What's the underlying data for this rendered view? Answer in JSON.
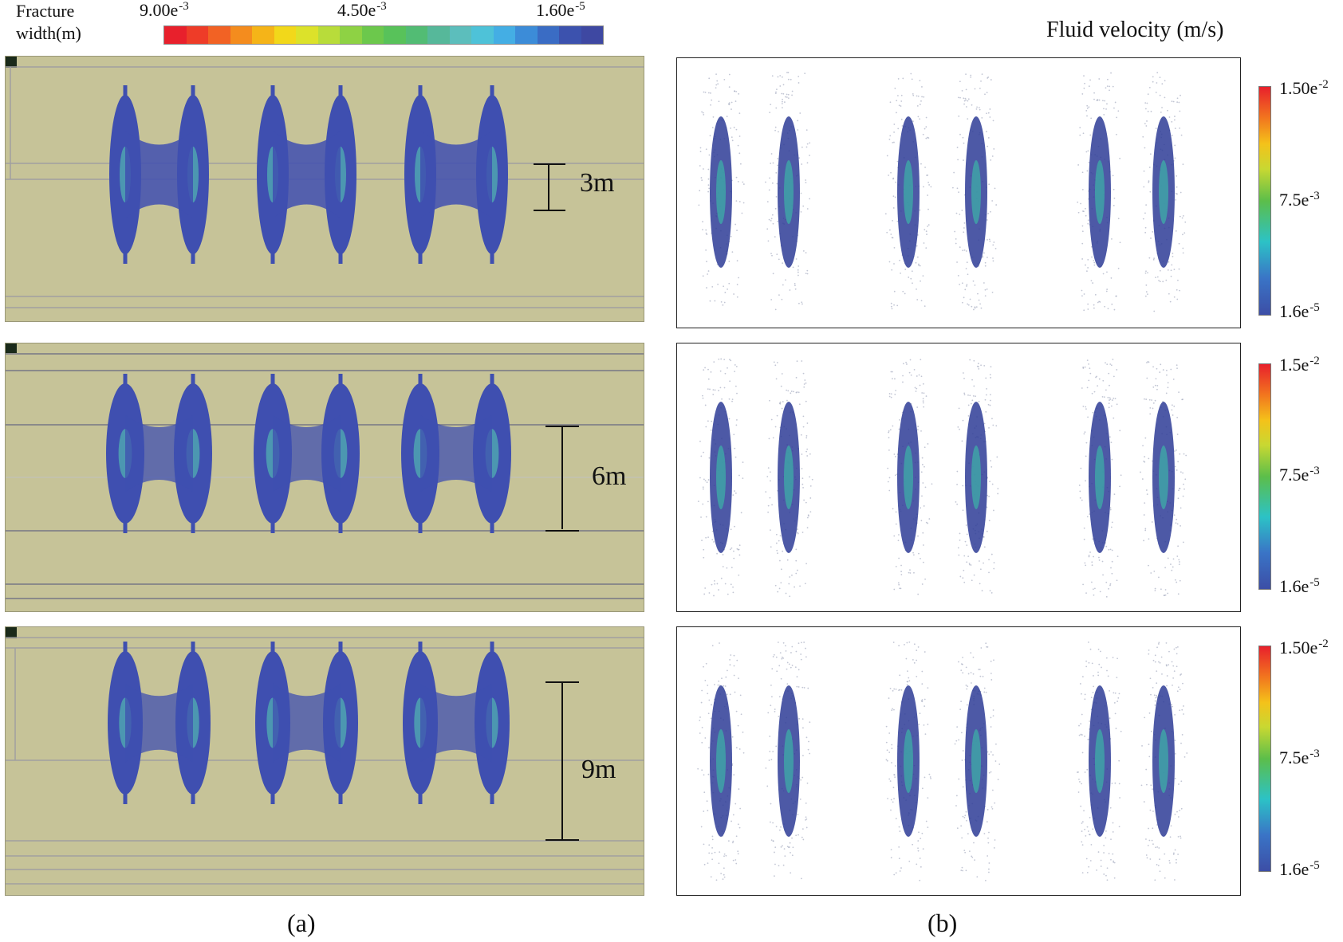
{
  "left_legend": {
    "title_line1": "Fracture",
    "title_line2": "width(m)",
    "max": "9.00e",
    "max_exp": "-3",
    "mid": "4.50e",
    "mid_exp": "-3",
    "min": "1.60e",
    "min_exp": "-5",
    "colors": [
      "#e8202c",
      "#ee3c28",
      "#f26224",
      "#f48c1e",
      "#f5b418",
      "#f2d81a",
      "#dce22a",
      "#b8dc3a",
      "#8ed244",
      "#6cc84c",
      "#58c25a",
      "#52bc74",
      "#56b89a",
      "#5cbebc",
      "#4ec2d8",
      "#44aee4",
      "#3c8cd8",
      "#3a6cc4",
      "#3c52ae",
      "#3e48a2"
    ]
  },
  "right_title": "Fluid velocity (m/s)",
  "panels_a": [
    {
      "spacing": "3m"
    },
    {
      "spacing": "6m"
    },
    {
      "spacing": "9m"
    }
  ],
  "panels_b": [
    {
      "max": "1.50e",
      "max_exp": "-2",
      "mid": "7.5e",
      "mid_exp": "-3",
      "min": "1.6e",
      "min_exp": "-5"
    },
    {
      "max": "1.5e",
      "max_exp": "-2",
      "mid": "7.5e",
      "mid_exp": "-3",
      "min": "1.6e",
      "min_exp": "-5"
    },
    {
      "max": "1.50e",
      "max_exp": "-2",
      "mid": "7.5e",
      "mid_exp": "-3",
      "min": "1.6e",
      "min_exp": "-5"
    }
  ],
  "captions": {
    "a": "(a)",
    "b": "(b)"
  },
  "colors": {
    "rock": "#c6c398",
    "fracture": "#3f4fb0",
    "fracture_core": "#52b6b2"
  }
}
